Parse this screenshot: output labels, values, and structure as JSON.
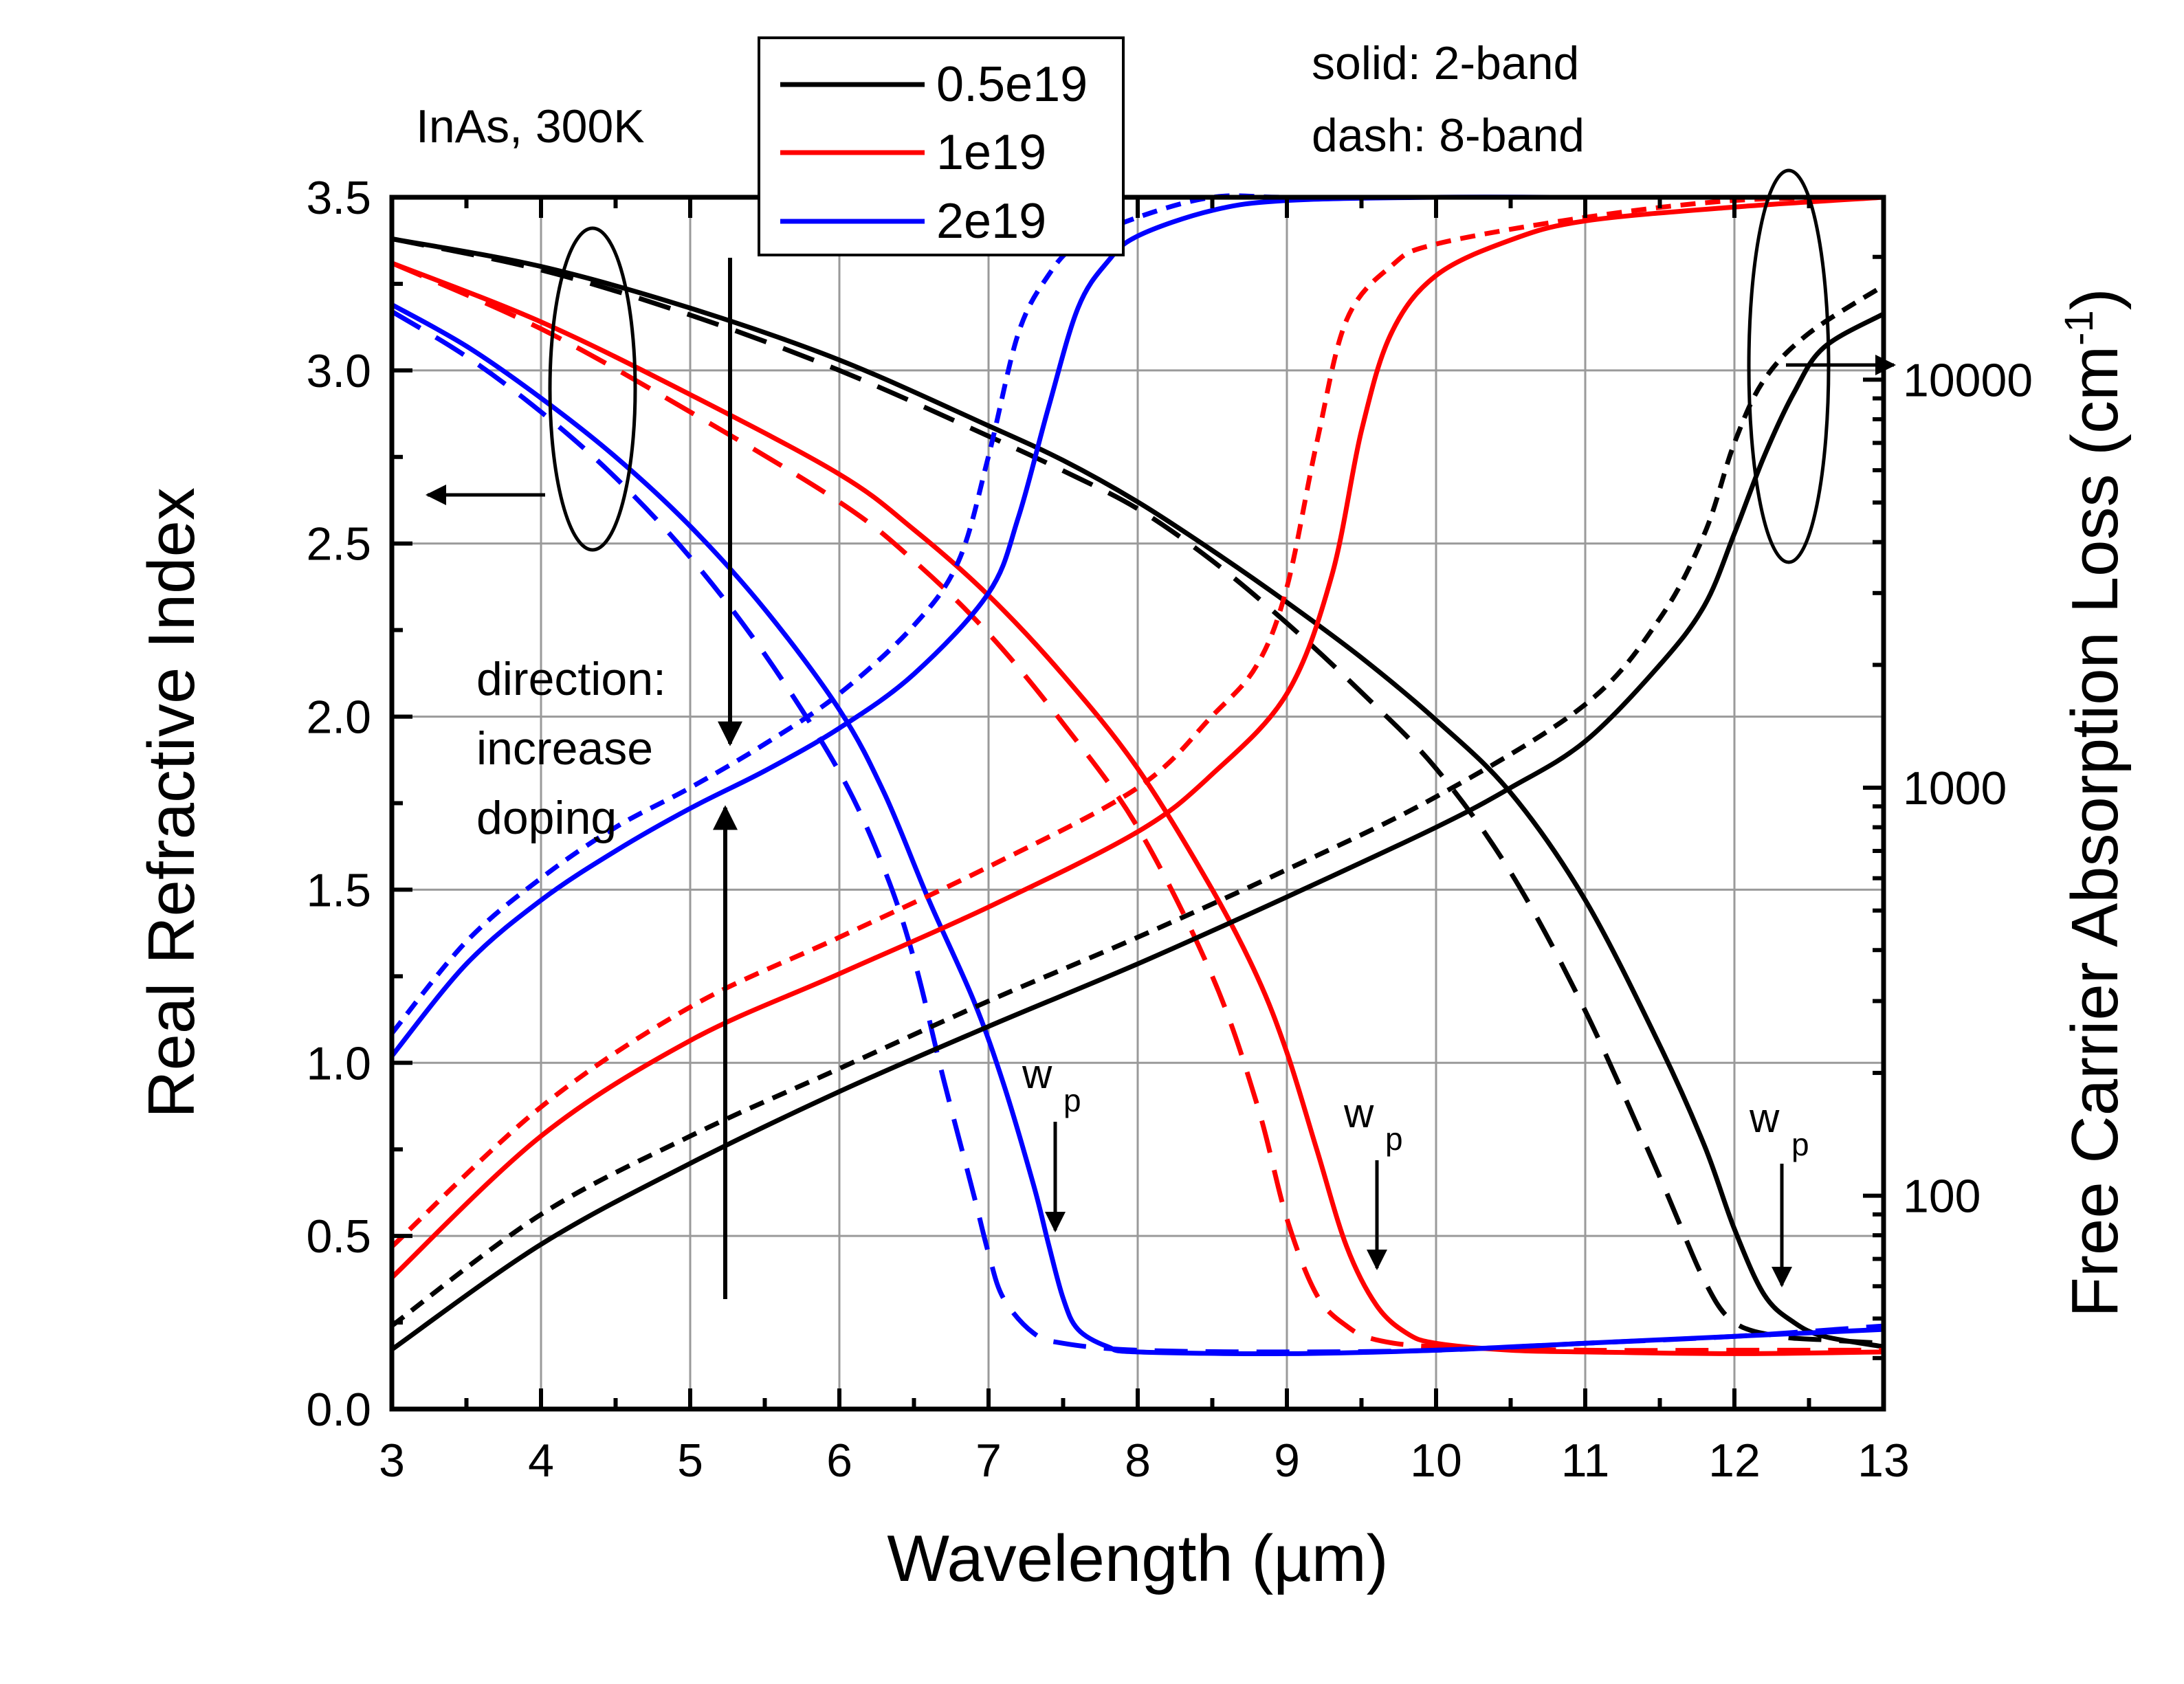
{
  "chart_data": {
    "type": "line",
    "annotations": {
      "material": "InAs, 300K",
      "line_style_solid": "solid: 2-band",
      "line_style_dash": "dash: 8-band",
      "direction_lines": [
        "direction:",
        "increase",
        "doping"
      ],
      "wp_main": "w",
      "wp_sub": "p"
    },
    "x_axis": {
      "label": "Wavelength (µm)",
      "range": [
        3,
        13
      ],
      "ticks": [
        3,
        4,
        5,
        6,
        7,
        8,
        9,
        10,
        11,
        12,
        13
      ]
    },
    "y_axis_left": {
      "label": "Real Refractive Index",
      "range": [
        0,
        3.5
      ],
      "ticks": [
        "0.0",
        "0.5",
        "1.0",
        "1.5",
        "2.0",
        "2.5",
        "3.0",
        "3.5"
      ]
    },
    "y_axis_right": {
      "label": "Free Carrier Absorption Loss (cm",
      "label_sup": "-1",
      "label_close": ")",
      "scale": "log",
      "range": [
        30,
        28000
      ],
      "ticks": [
        "100",
        "1000",
        "10000"
      ]
    },
    "grid": true,
    "legend": {
      "position": "top-center",
      "entries": [
        {
          "label": "0.5e19",
          "color": "#000000"
        },
        {
          "label": "1e19",
          "color": "#ff0000"
        },
        {
          "label": "2e19",
          "color": "#0000ff"
        }
      ]
    },
    "series": [
      {
        "doping": "0.5e19",
        "model": "2-band",
        "quantity": "refractive_index",
        "axis": "left",
        "color": "#000000",
        "dash": false,
        "x": [
          3,
          4,
          5,
          6,
          7,
          7.5,
          8,
          8.5,
          9,
          9.5,
          10,
          10.5,
          11,
          11.5,
          11.8,
          12,
          12.2,
          12.4,
          12.6,
          13
        ],
        "y": [
          3.38,
          3.3,
          3.18,
          3.03,
          2.84,
          2.74,
          2.62,
          2.48,
          2.33,
          2.17,
          1.99,
          1.78,
          1.47,
          1.05,
          0.76,
          0.52,
          0.33,
          0.25,
          0.21,
          0.18
        ]
      },
      {
        "doping": "0.5e19",
        "model": "8-band",
        "quantity": "refractive_index",
        "axis": "left",
        "color": "#000000",
        "dash": true,
        "x": [
          3,
          4,
          5,
          6,
          7,
          7.5,
          8,
          8.5,
          9,
          9.5,
          10,
          10.5,
          11,
          11.5,
          11.8,
          12,
          12.3,
          12.6,
          13
        ],
        "y": [
          3.38,
          3.29,
          3.16,
          3.0,
          2.81,
          2.71,
          2.6,
          2.45,
          2.27,
          2.07,
          1.85,
          1.55,
          1.15,
          0.67,
          0.37,
          0.25,
          0.21,
          0.2,
          0.19
        ]
      },
      {
        "doping": "1e19",
        "model": "2-band",
        "quantity": "refractive_index",
        "axis": "left",
        "color": "#ff0000",
        "dash": false,
        "x": [
          3,
          4,
          5,
          6,
          6.5,
          7,
          7.5,
          8,
          8.5,
          8.8,
          9,
          9.2,
          9.4,
          9.6,
          9.8,
          10,
          10.5,
          11,
          12,
          13
        ],
        "y": [
          3.31,
          3.14,
          2.93,
          2.7,
          2.54,
          2.35,
          2.12,
          1.85,
          1.5,
          1.25,
          1.03,
          0.75,
          0.47,
          0.3,
          0.22,
          0.19,
          0.17,
          0.165,
          0.16,
          0.165
        ]
      },
      {
        "doping": "1e19",
        "model": "8-band",
        "quantity": "refractive_index",
        "axis": "left",
        "color": "#ff0000",
        "dash": true,
        "x": [
          3,
          4,
          5,
          6,
          6.5,
          7,
          7.5,
          8,
          8.5,
          8.8,
          9,
          9.2,
          9.4,
          9.6,
          10,
          11,
          12,
          13
        ],
        "y": [
          3.31,
          3.12,
          2.88,
          2.62,
          2.45,
          2.24,
          1.98,
          1.68,
          1.25,
          0.88,
          0.55,
          0.33,
          0.24,
          0.2,
          0.18,
          0.17,
          0.17,
          0.17
        ]
      },
      {
        "doping": "2e19",
        "model": "2-band",
        "quantity": "refractive_index",
        "axis": "left",
        "color": "#0000ff",
        "dash": false,
        "x": [
          3,
          3.5,
          4,
          4.5,
          5,
          5.5,
          6,
          6.3,
          6.6,
          6.9,
          7.1,
          7.3,
          7.4,
          7.5,
          7.6,
          7.8,
          8,
          9,
          10,
          11,
          12,
          13
        ],
        "y": [
          3.19,
          3.07,
          2.92,
          2.75,
          2.55,
          2.31,
          2.02,
          1.78,
          1.47,
          1.18,
          0.94,
          0.65,
          0.48,
          0.32,
          0.23,
          0.18,
          0.165,
          0.16,
          0.17,
          0.19,
          0.21,
          0.23
        ]
      },
      {
        "doping": "2e19",
        "model": "8-band",
        "quantity": "refractive_index",
        "axis": "left",
        "color": "#0000ff",
        "dash": true,
        "x": [
          3,
          3.5,
          4,
          4.5,
          5,
          5.5,
          6,
          6.3,
          6.5,
          6.7,
          6.9,
          7.0,
          7.1,
          7.3,
          7.5,
          8,
          9,
          10,
          11,
          12,
          13
        ],
        "y": [
          3.17,
          3.04,
          2.88,
          2.69,
          2.46,
          2.18,
          1.84,
          1.56,
          1.3,
          0.95,
          0.62,
          0.45,
          0.32,
          0.22,
          0.19,
          0.17,
          0.165,
          0.17,
          0.19,
          0.21,
          0.24
        ]
      },
      {
        "doping": "0.5e19",
        "model": "2-band",
        "quantity": "absorption_loss",
        "axis": "right",
        "color": "#000000",
        "dash": false,
        "x": [
          3,
          4,
          5,
          6,
          7,
          8,
          9,
          10,
          10.5,
          11,
          11.5,
          11.8,
          12,
          12.2,
          12.4,
          12.6,
          13
        ],
        "y": [
          42,
          76,
          120,
          180,
          260,
          370,
          540,
          800,
          1000,
          1300,
          2000,
          2800,
          4200,
          6500,
          9300,
          12000,
          14500
        ]
      },
      {
        "doping": "0.5e19",
        "model": "8-band",
        "quantity": "absorption_loss",
        "axis": "right",
        "color": "#000000",
        "dash": true,
        "x": [
          3,
          4,
          5,
          6,
          7,
          8,
          9,
          10,
          11,
          11.5,
          11.8,
          12,
          12.2,
          12.5,
          13
        ],
        "y": [
          48,
          90,
          140,
          205,
          300,
          430,
          630,
          950,
          1600,
          2600,
          4200,
          7000,
          10000,
          13000,
          17000
        ]
      },
      {
        "doping": "1e19",
        "model": "2-band",
        "quantity": "absorption_loss",
        "axis": "right",
        "color": "#ff0000",
        "dash": false,
        "x": [
          3,
          4,
          5,
          6,
          7,
          8,
          8.5,
          9,
          9.3,
          9.5,
          9.7,
          10,
          10.5,
          11,
          12,
          13
        ],
        "y": [
          63,
          140,
          240,
          350,
          510,
          780,
          1080,
          1700,
          3300,
          7500,
          13000,
          18000,
          22000,
          24500,
          26500,
          28000
        ]
      },
      {
        "doping": "1e19",
        "model": "8-band",
        "quantity": "absorption_loss",
        "axis": "right",
        "color": "#ff0000",
        "dash": true,
        "x": [
          3,
          4,
          5,
          6,
          7,
          8,
          8.5,
          8.8,
          9.0,
          9.2,
          9.4,
          9.7,
          10,
          11,
          12,
          13
        ],
        "y": [
          75,
          165,
          290,
          430,
          640,
          1000,
          1500,
          2000,
          3100,
          7000,
          14000,
          19000,
          21500,
          25000,
          27500,
          29000
        ]
      },
      {
        "doping": "2e19",
        "model": "2-band",
        "quantity": "absorption_loss",
        "axis": "right",
        "color": "#0000ff",
        "dash": false,
        "x": [
          3,
          3.5,
          4,
          4.5,
          5,
          5.5,
          6,
          6.5,
          7,
          7.2,
          7.4,
          7.6,
          7.8,
          8,
          8.5,
          9,
          10,
          11,
          12,
          13
        ],
        "y": [
          220,
          370,
          530,
          700,
          890,
          1100,
          1400,
          1900,
          3000,
          4600,
          8500,
          15000,
          19500,
          22500,
          26000,
          27500,
          29000,
          30000,
          31000,
          32000
        ]
      },
      {
        "doping": "2e19",
        "model": "8-band",
        "quantity": "absorption_loss",
        "axis": "right",
        "color": "#0000ff",
        "dash": true,
        "x": [
          3,
          3.5,
          4,
          4.5,
          5,
          5.5,
          6,
          6.5,
          6.8,
          7.0,
          7.2,
          7.4,
          7.6,
          8,
          8.5,
          9,
          10,
          11,
          12,
          13
        ],
        "y": [
          250,
          420,
          600,
          800,
          1000,
          1280,
          1700,
          2500,
          3600,
          6500,
          13000,
          18000,
          21500,
          25000,
          28000,
          29500,
          30500,
          31000,
          31500,
          32000
        ]
      }
    ]
  }
}
